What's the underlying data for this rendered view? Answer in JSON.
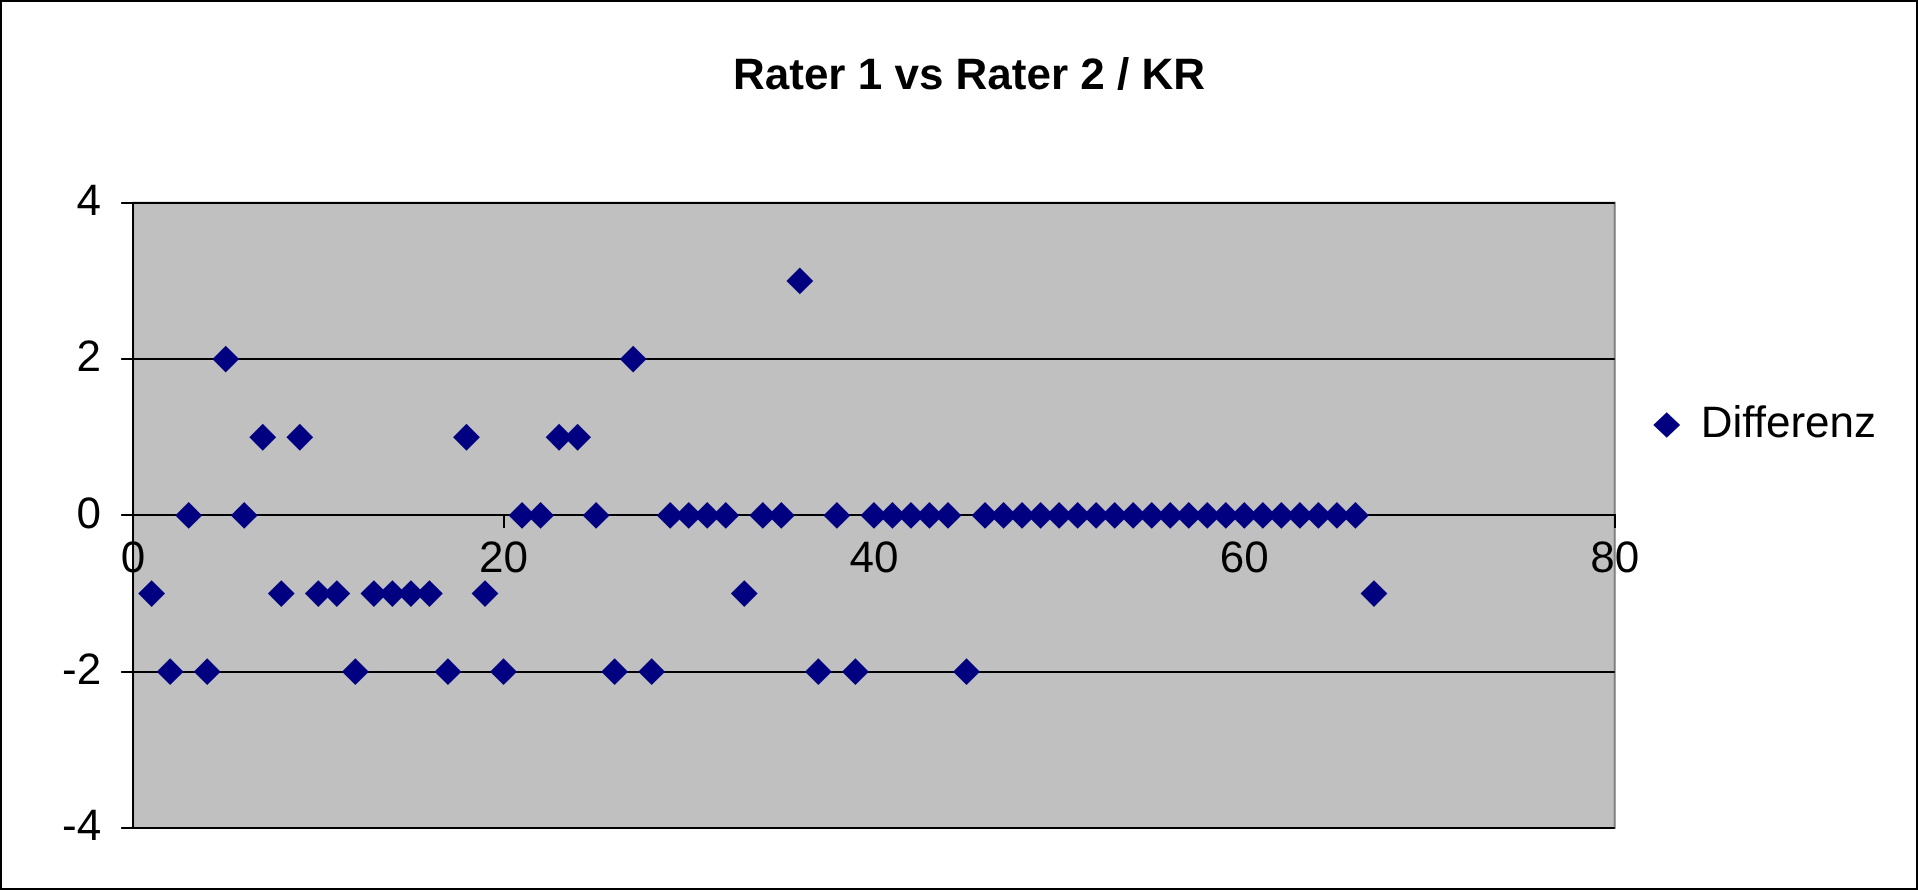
{
  "chart_data": {
    "type": "scatter",
    "title": "Rater 1 vs Rater 2 / KR",
    "x": [
      1,
      2,
      3,
      4,
      5,
      6,
      7,
      8,
      9,
      10,
      11,
      12,
      13,
      14,
      15,
      16,
      17,
      18,
      19,
      20,
      21,
      22,
      23,
      24,
      25,
      26,
      27,
      28,
      29,
      30,
      31,
      32,
      33,
      34,
      35,
      36,
      37,
      38,
      39,
      40,
      41,
      42,
      43,
      44,
      45,
      46,
      47,
      48,
      49,
      50,
      51,
      52,
      53,
      54,
      55,
      56,
      57,
      58,
      59,
      60,
      61,
      62,
      63,
      64,
      65,
      66,
      67
    ],
    "series": [
      {
        "name": "Differenz",
        "color": "#000080",
        "values": [
          -1,
          -2,
          0,
          -2,
          2,
          0,
          1,
          -1,
          1,
          -1,
          -1,
          -2,
          -1,
          -1,
          -1,
          -1,
          -2,
          1,
          -1,
          -2,
          0,
          0,
          1,
          1,
          0,
          -2,
          2,
          -2,
          0,
          0,
          0,
          0,
          -1,
          0,
          0,
          3,
          -2,
          0,
          -2,
          0,
          0,
          0,
          0,
          0,
          -2,
          0,
          0,
          0,
          0,
          0,
          0,
          0,
          0,
          0,
          0,
          0,
          0,
          0,
          0,
          0,
          0,
          0,
          0,
          0,
          0,
          0,
          -1
        ]
      }
    ],
    "xlim": [
      0,
      80
    ],
    "xticks": [
      0,
      20,
      40,
      60,
      80
    ],
    "ylim": [
      -4,
      4
    ],
    "yticks": [
      -4,
      -2,
      0,
      2,
      4
    ],
    "grid": "y",
    "legend": "right",
    "marker": "diamond"
  }
}
